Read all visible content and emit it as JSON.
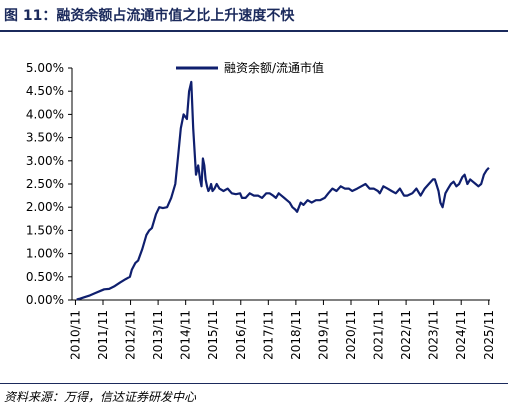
{
  "figure": {
    "title": "图 11：融资余额占流通市值之比上升速度不快",
    "source": "资料来源：万得，信达证券研发中心"
  },
  "colors": {
    "line": "#0f1f6e",
    "title": "#1b2a5c",
    "axis": "#000000"
  },
  "chart_data": {
    "type": "line",
    "categories": [
      "2010/11",
      "2011/11",
      "2012/11",
      "2013/11",
      "2014/11",
      "2015/11",
      "2016/11",
      "2017/11",
      "2018/11",
      "2019/11",
      "2020/11",
      "2021/11",
      "2022/11",
      "2023/11",
      "2024/11",
      "2025/11"
    ],
    "y_tick_labels": [
      "0.00%",
      "0.50%",
      "1.00%",
      "1.50%",
      "2.00%",
      "2.50%",
      "3.00%",
      "3.50%",
      "4.00%",
      "4.50%",
      "5.00%"
    ],
    "ylim": [
      0,
      5
    ],
    "xlim": [
      2010.75,
      2025.92
    ],
    "legend_position": "top-center",
    "grid": false,
    "series": [
      {
        "name": "融资余额/流通市值",
        "x": [
          2010.92,
          2011.05,
          2011.2,
          2011.4,
          2011.6,
          2011.8,
          2011.92,
          2012.1,
          2012.3,
          2012.5,
          2012.7,
          2012.85,
          2012.92,
          2013.05,
          2013.15,
          2013.3,
          2013.45,
          2013.55,
          2013.65,
          2013.8,
          2013.92,
          2014.05,
          2014.2,
          2014.35,
          2014.5,
          2014.6,
          2014.7,
          2014.8,
          2014.92,
          2015.0,
          2015.08,
          2015.15,
          2015.25,
          2015.33,
          2015.4,
          2015.45,
          2015.5,
          2015.55,
          2015.6,
          2015.65,
          2015.7,
          2015.75,
          2015.8,
          2015.85,
          2015.92,
          2016.0,
          2016.1,
          2016.25,
          2016.4,
          2016.55,
          2016.7,
          2016.85,
          2016.92,
          2017.05,
          2017.2,
          2017.35,
          2017.5,
          2017.65,
          2017.8,
          2017.92,
          2018.05,
          2018.15,
          2018.25,
          2018.35,
          2018.45,
          2018.55,
          2018.65,
          2018.75,
          2018.85,
          2018.92,
          2019.05,
          2019.15,
          2019.3,
          2019.45,
          2019.6,
          2019.75,
          2019.92,
          2020.05,
          2020.2,
          2020.35,
          2020.5,
          2020.65,
          2020.8,
          2020.92,
          2021.1,
          2021.25,
          2021.4,
          2021.55,
          2021.7,
          2021.85,
          2021.92,
          2022.05,
          2022.2,
          2022.35,
          2022.5,
          2022.65,
          2022.8,
          2022.92,
          2023.1,
          2023.25,
          2023.4,
          2023.55,
          2023.7,
          2023.85,
          2023.92,
          2024.05,
          2024.12,
          2024.2,
          2024.3,
          2024.4,
          2024.5,
          2024.6,
          2024.7,
          2024.8,
          2024.92,
          2025.0,
          2025.1,
          2025.2,
          2025.3,
          2025.4,
          2025.5,
          2025.6,
          2025.7,
          2025.8,
          2025.88
        ],
        "values": [
          0.01,
          0.03,
          0.06,
          0.1,
          0.15,
          0.2,
          0.23,
          0.24,
          0.3,
          0.38,
          0.45,
          0.5,
          0.65,
          0.8,
          0.85,
          1.1,
          1.4,
          1.5,
          1.55,
          1.85,
          2.0,
          1.98,
          2.0,
          2.2,
          2.5,
          3.1,
          3.7,
          4.0,
          3.9,
          4.5,
          4.7,
          3.7,
          2.7,
          2.9,
          2.6,
          2.45,
          3.05,
          2.9,
          2.6,
          2.45,
          2.35,
          2.4,
          2.5,
          2.35,
          2.4,
          2.5,
          2.4,
          2.35,
          2.4,
          2.3,
          2.28,
          2.3,
          2.2,
          2.2,
          2.3,
          2.25,
          2.25,
          2.2,
          2.3,
          2.3,
          2.25,
          2.2,
          2.3,
          2.25,
          2.2,
          2.15,
          2.1,
          2.0,
          1.95,
          1.9,
          2.1,
          2.05,
          2.15,
          2.1,
          2.15,
          2.15,
          2.2,
          2.3,
          2.4,
          2.35,
          2.45,
          2.4,
          2.4,
          2.35,
          2.4,
          2.45,
          2.5,
          2.4,
          2.4,
          2.35,
          2.3,
          2.45,
          2.4,
          2.35,
          2.3,
          2.4,
          2.25,
          2.25,
          2.3,
          2.4,
          2.25,
          2.4,
          2.5,
          2.6,
          2.6,
          2.35,
          2.1,
          2.0,
          2.3,
          2.4,
          2.5,
          2.55,
          2.45,
          2.5,
          2.65,
          2.7,
          2.5,
          2.6,
          2.55,
          2.5,
          2.45,
          2.5,
          2.7,
          2.8,
          2.85
        ]
      }
    ]
  }
}
